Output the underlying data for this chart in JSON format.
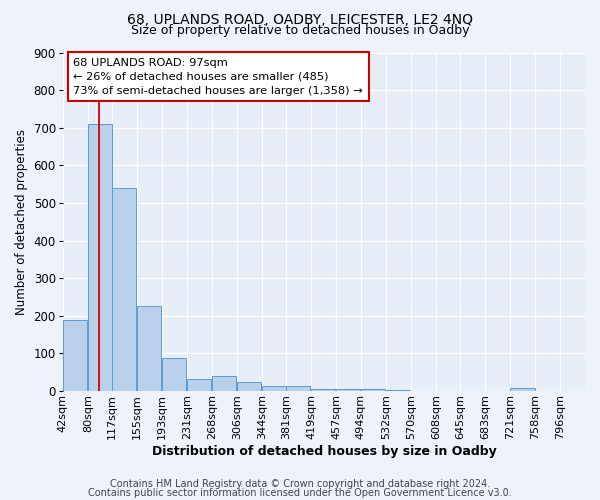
{
  "title1": "68, UPLANDS ROAD, OADBY, LEICESTER, LE2 4NQ",
  "title2": "Size of property relative to detached houses in Oadby",
  "xlabel": "Distribution of detached houses by size in Oadby",
  "ylabel": "Number of detached properties",
  "footer1": "Contains HM Land Registry data © Crown copyright and database right 2024.",
  "footer2": "Contains public sector information licensed under the Open Government Licence v3.0.",
  "annotation_title": "68 UPLANDS ROAD: 97sqm",
  "annotation_line1": "← 26% of detached houses are smaller (485)",
  "annotation_line2": "73% of semi-detached houses are larger (1,358) →",
  "bar_labels": [
    "42sqm",
    "80sqm",
    "117sqm",
    "155sqm",
    "193sqm",
    "231sqm",
    "268sqm",
    "306sqm",
    "344sqm",
    "381sqm",
    "419sqm",
    "457sqm",
    "494sqm",
    "532sqm",
    "570sqm",
    "608sqm",
    "645sqm",
    "683sqm",
    "721sqm",
    "758sqm",
    "796sqm"
  ],
  "bar_values": [
    190,
    710,
    540,
    225,
    88,
    32,
    40,
    25,
    13,
    13,
    5,
    5,
    5,
    2,
    0,
    0,
    0,
    0,
    8,
    0,
    0
  ],
  "bar_color": "#b8d0ea",
  "bar_edge_color": "#5b9bd5",
  "x_bin_starts": [
    42,
    80,
    117,
    155,
    193,
    231,
    268,
    306,
    344,
    381,
    419,
    457,
    494,
    532,
    570,
    608,
    645,
    683,
    721,
    758,
    796
  ],
  "bin_width": 37,
  "red_line_x": 97,
  "ylim": [
    0,
    900
  ],
  "yticks": [
    0,
    100,
    200,
    300,
    400,
    500,
    600,
    700,
    800,
    900
  ],
  "background_color": "#eef2fb",
  "plot_bg_color": "#e8eef8",
  "grid_color": "#ffffff",
  "annotation_box_color": "#ffffff",
  "annotation_box_edge": "#cc0000",
  "red_line_color": "#cc0000",
  "title1_fontsize": 10,
  "title2_fontsize": 9,
  "axis_fontsize": 8,
  "footer_fontsize": 7
}
